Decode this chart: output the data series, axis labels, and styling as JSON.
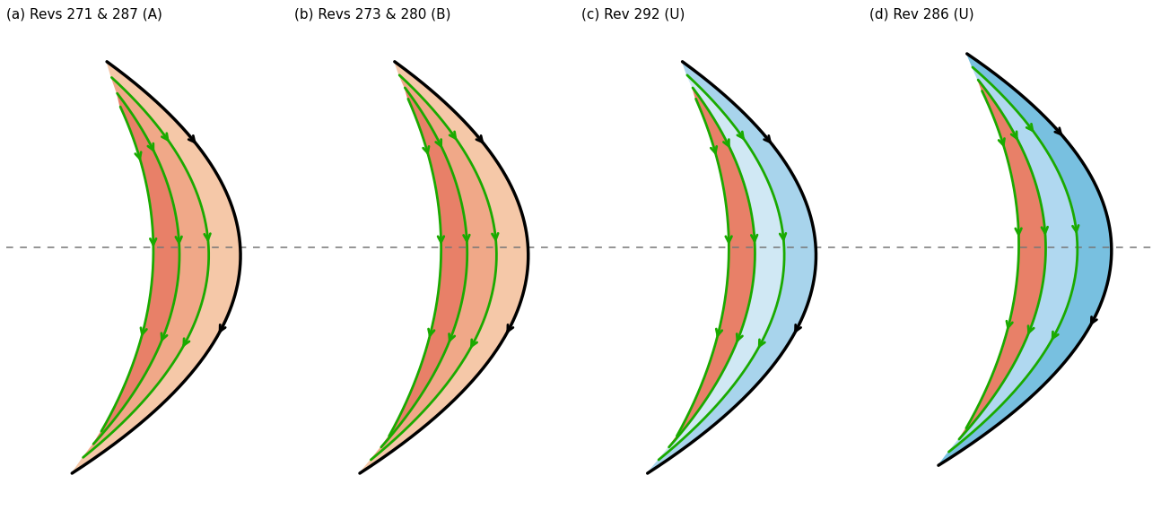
{
  "titles": [
    "(a) Revs 271 & 287 (A)",
    "(b) Revs 273 & 280 (B)",
    "(c) Rev 292 (U)",
    "(d) Rev 286 (U)"
  ],
  "background_color": "#ffffff",
  "green_color": "#1aaa00",
  "figsize": [
    12.94,
    5.88
  ],
  "dpi": 100,
  "title_fontsize": 11
}
